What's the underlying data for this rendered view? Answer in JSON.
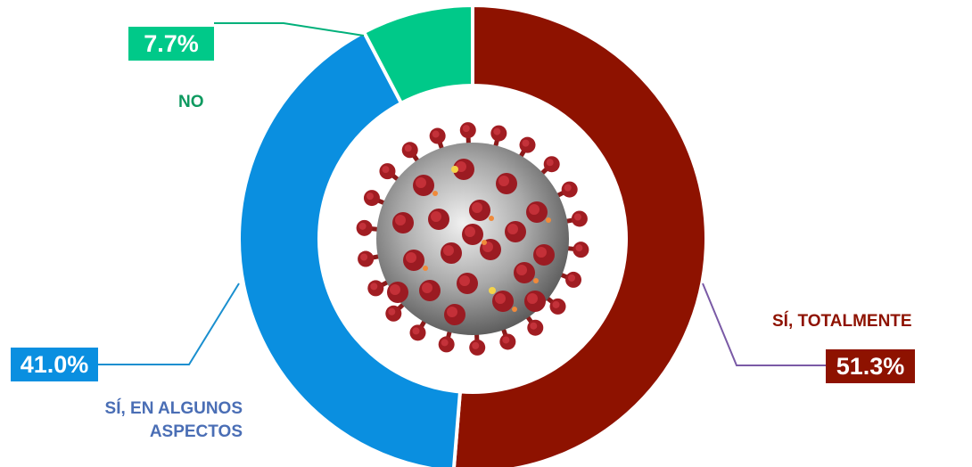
{
  "chart_data": {
    "type": "pie",
    "donut": true,
    "legend": "none",
    "slices": [
      {
        "label": "SÍ, TOTALMENTE",
        "value": 51.3,
        "value_label": "51.3%",
        "color": "#8E1200",
        "label_color": "#8E1200"
      },
      {
        "label": "SÍ, EN ALGUNOS ASPECTOS",
        "value": 41.0,
        "value_label": "41.0%",
        "color": "#0A8FE0",
        "label_color": "#4A6EB5"
      },
      {
        "label": "NO",
        "value": 7.7,
        "value_label": "7.7%",
        "color": "#00C989",
        "label_color": "#0E9A60"
      }
    ],
    "center_image": "coronavirus-illustration"
  }
}
